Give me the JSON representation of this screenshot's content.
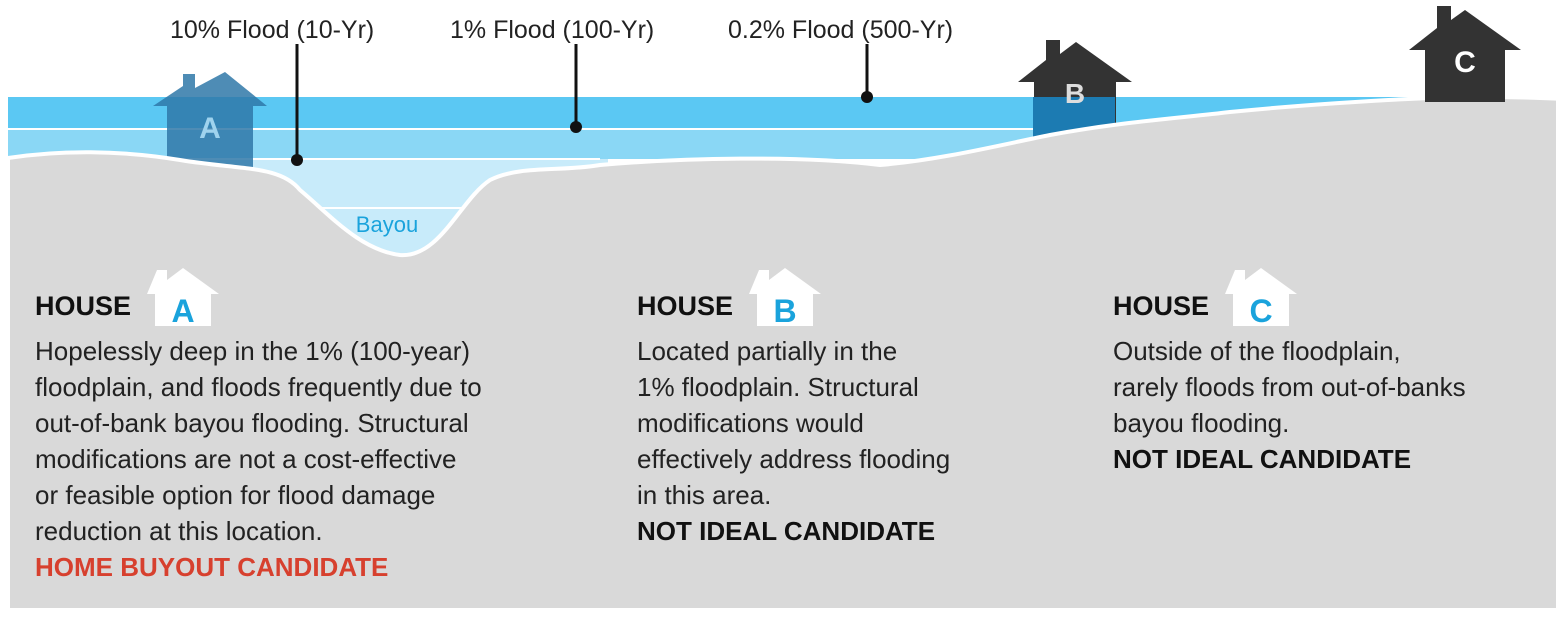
{
  "flood_levels": [
    "10% Flood (10-Yr)",
    "1% Flood (100-Yr)",
    "0.2% Flood (500-Yr)"
  ],
  "bayou": "Bayou",
  "houses": [
    {
      "heading": "HOUSE",
      "letter": "A",
      "description_lines": [
        "Hopelessly deep in the 1% (100-year)",
        "floodplain, and floods frequently due to",
        "out-of-bank bayou flooding. Structural",
        "modifications are not a cost-effective",
        "or feasible option for flood damage",
        "reduction at this location."
      ],
      "verdict": "HOME BUYOUT CANDIDATE"
    },
    {
      "heading": "HOUSE",
      "letter": "B",
      "description_lines": [
        "Located partially in the",
        "1% floodplain. Structural",
        "modifications would",
        "effectively address flooding",
        "in this area."
      ],
      "verdict": "NOT IDEAL CANDIDATE"
    },
    {
      "heading": "HOUSE",
      "letter": "C",
      "description_lines": [
        "Outside of the floodplain,",
        "rarely floods from out-of-banks",
        "bayou flooding."
      ],
      "verdict": "NOT IDEAL CANDIDATE"
    }
  ]
}
